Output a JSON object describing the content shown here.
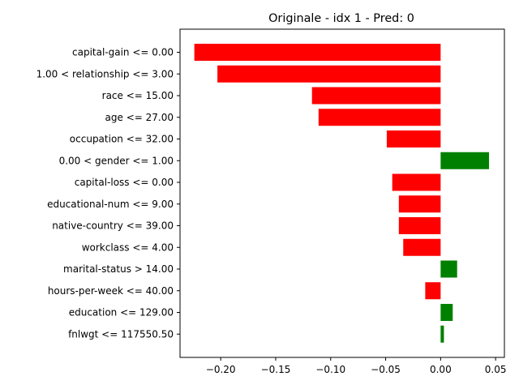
{
  "chart_data": {
    "type": "bar",
    "orientation": "horizontal",
    "title": "Originale - idx 1 - Pred: 0",
    "xlabel": "",
    "ylabel": "",
    "xlim": [
      -0.237,
      0.058
    ],
    "grid": false,
    "legend": "none",
    "categories": [
      "capital-gain <= 0.00",
      "1.00 < relationship <= 3.00",
      "race <= 15.00",
      "age <= 27.00",
      "occupation <= 32.00",
      "0.00 < gender <= 1.00",
      "capital-loss <= 0.00",
      "educational-num <= 9.00",
      "native-country <= 39.00",
      "workclass <= 4.00",
      "marital-status > 14.00",
      "hours-per-week <= 40.00",
      "education <= 129.00",
      "fnlwgt <= 117550.50"
    ],
    "values": [
      -0.224,
      -0.203,
      -0.117,
      -0.111,
      -0.049,
      0.044,
      -0.044,
      -0.038,
      -0.038,
      -0.034,
      0.015,
      -0.014,
      0.011,
      0.003
    ],
    "x_ticks": [
      -0.2,
      -0.15,
      -0.1,
      -0.05,
      0.0,
      0.05
    ],
    "x_tick_labels": [
      "−0.20",
      "−0.15",
      "−0.10",
      "−0.05",
      "0.00",
      "0.05"
    ],
    "colors": {
      "negative": "#ff0000",
      "positive": "#008000",
      "axis": "#000000"
    }
  }
}
